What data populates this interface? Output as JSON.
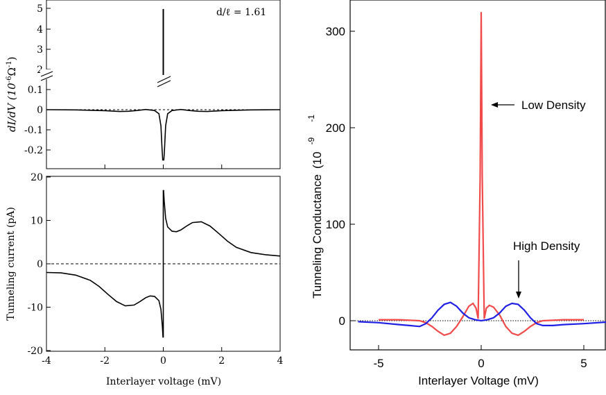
{
  "chart_data": [
    {
      "type": "line",
      "panel": "left-top",
      "annotation": "d/ℓ = 1.61",
      "ylabel_main": "dI/dV (10",
      "ylabel_exp": "-6",
      "ylabel_unit": "Ω",
      "ylabel_unit_exp": "-1",
      "ylabel_close": ")",
      "yticks_upper": [
        "5",
        "4",
        "3",
        "2"
      ],
      "yticks_lower": [
        "0.1",
        "0",
        "-0.1",
        "-0.2"
      ],
      "axis_break": true,
      "xlim": [
        -4,
        4
      ],
      "reference_line": 0,
      "series": [
        {
          "color": "#000000",
          "x": [
            -4,
            -3,
            -2,
            -1.5,
            -1.2,
            -0.9,
            -0.6,
            -0.3,
            -0.15,
            -0.08,
            -0.04,
            -0.02,
            0,
            0.02,
            0.04,
            0.08,
            0.15,
            0.3,
            0.6,
            0.9,
            1.2,
            1.5,
            2,
            3,
            4
          ],
          "y": [
            0,
            -0.001,
            -0.005,
            -0.009,
            -0.008,
            -0.004,
            0.001,
            -0.004,
            -0.02,
            -0.08,
            -0.2,
            -0.25,
            5,
            -0.25,
            -0.2,
            -0.08,
            -0.02,
            -0.004,
            0.001,
            -0.004,
            -0.008,
            -0.009,
            -0.005,
            -0.001,
            0
          ]
        }
      ]
    },
    {
      "type": "line",
      "panel": "left-bottom",
      "xlabel": "Interlayer voltage (mV)",
      "ylabel": "Tunneling current (pA)",
      "xlim": [
        -4,
        4
      ],
      "ylim": [
        -20,
        20
      ],
      "xticks": [
        "-4",
        "-2",
        "0",
        "2",
        "4"
      ],
      "yticks": [
        "20",
        "10",
        "0",
        "-10",
        "-20"
      ],
      "reference_line": 0,
      "series": [
        {
          "color": "#000000",
          "x": [
            -4,
            -3.5,
            -3,
            -2.5,
            -2.2,
            -1.9,
            -1.6,
            -1.3,
            -1.0,
            -0.8,
            -0.6,
            -0.45,
            -0.3,
            -0.15,
            -0.08,
            -0.03,
            -0.01,
            0,
            0.01,
            0.03,
            0.08,
            0.15,
            0.3,
            0.45,
            0.6,
            0.8,
            1.0,
            1.3,
            1.6,
            1.9,
            2.2,
            2.5,
            3,
            3.5,
            4
          ],
          "y": [
            -2,
            -2.1,
            -2.6,
            -3.8,
            -5.2,
            -7,
            -8.7,
            -9.7,
            -9.5,
            -8.7,
            -7.8,
            -7.4,
            -7.5,
            -8.5,
            -10.5,
            -14.5,
            -17,
            0,
            17,
            14.5,
            10.5,
            8.5,
            7.5,
            7.4,
            7.8,
            8.7,
            9.5,
            9.7,
            8.7,
            7,
            5.2,
            3.8,
            2.6,
            2.1,
            1.8
          ]
        }
      ]
    },
    {
      "type": "line",
      "panel": "right",
      "xlabel": "Interlayer Voltage (mV)",
      "ylabel": "Tunneling Conductance",
      "ylabel_unit": "(10",
      "ylabel_exp": "-9",
      "ylabel_unit_exp": "-1",
      "xlim": [
        -6,
        6.4
      ],
      "ylim": [
        -30,
        330
      ],
      "xticks": [
        "-5",
        "0",
        "5"
      ],
      "yticks": [
        "300",
        "200",
        "100",
        "0"
      ],
      "reference_line": 0,
      "annotations": [
        "Low Density",
        "High Density"
      ],
      "series": [
        {
          "name": "Low Density",
          "color": "#f04a4a",
          "x": [
            -5,
            -4,
            -3,
            -2.7,
            -2.4,
            -2.1,
            -1.8,
            -1.5,
            -1.2,
            -0.9,
            -0.6,
            -0.4,
            -0.25,
            -0.15,
            -0.05,
            0,
            0.05,
            0.15,
            0.25,
            0.4,
            0.6,
            0.9,
            1.2,
            1.5,
            1.8,
            2.1,
            2.4,
            2.7,
            3,
            4,
            5
          ],
          "y": [
            1,
            1,
            0,
            -2,
            -6,
            -11,
            -15,
            -13,
            -6,
            4,
            15,
            18,
            13,
            2,
            150,
            320,
            150,
            2,
            13,
            16,
            14,
            6,
            -6,
            -13,
            -15,
            -11,
            -6,
            -2,
            0,
            1,
            1
          ]
        },
        {
          "name": "High Density",
          "color": "#1f1fe6",
          "x": [
            -6,
            -5,
            -4,
            -3.5,
            -3,
            -2.7,
            -2.4,
            -2.1,
            -1.8,
            -1.5,
            -1.2,
            -0.9,
            -0.6,
            -0.3,
            0,
            0.3,
            0.6,
            0.9,
            1.2,
            1.5,
            1.8,
            2.1,
            2.4,
            2.7,
            3,
            3.5,
            4,
            5,
            6.4
          ],
          "y": [
            -1,
            -2,
            -4,
            -5,
            -6,
            -3,
            3,
            11,
            17,
            19,
            15,
            8,
            3,
            1,
            0,
            1,
            3,
            8,
            15,
            18,
            17,
            11,
            3,
            -3,
            -5,
            -5,
            -4,
            -3,
            -1
          ]
        }
      ]
    }
  ]
}
